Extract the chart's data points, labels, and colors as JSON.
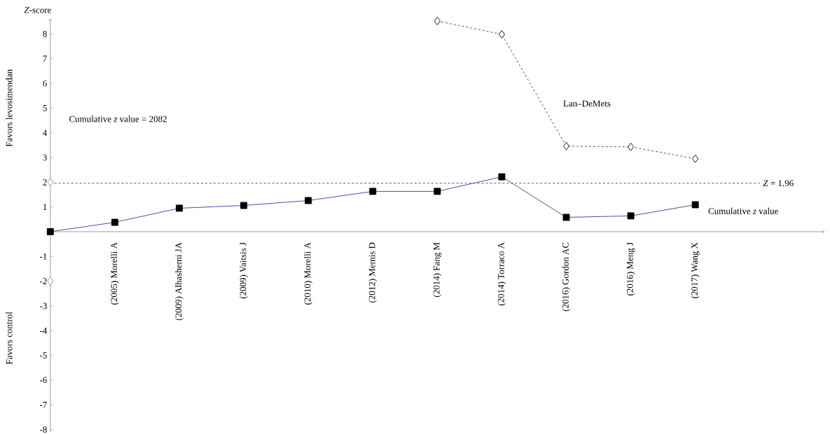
{
  "chart_data": {
    "type": "line",
    "ylabel": "*Z*-score",
    "categories": [
      null,
      "(2005) Morelli A",
      "(2009) Alhashemi JA",
      "(2009) Vaitsis J",
      "(2010) Morelli A",
      "(2012) Memis D",
      "(2014) Fang M",
      "(2014) Torraco A",
      "(2016) Gordon AC",
      "(2016) Meng J",
      "(2017) Wang X"
    ],
    "series": [
      {
        "name": "Cumulative *z* value",
        "color": "#2e3f9e",
        "marker": "square",
        "line_style": "solid",
        "values": [
          0,
          0.38,
          0.95,
          1.06,
          1.26,
          1.63,
          1.63,
          2.22,
          0.58,
          0.64,
          1.09
        ]
      },
      {
        "name": "Lan–DeMets",
        "color": "#9b1b4b",
        "marker": "diamond",
        "line_style": "dashed",
        "values": [
          null,
          null,
          null,
          null,
          null,
          null,
          8.52,
          7.98,
          3.46,
          3.43,
          2.95
        ]
      },
      {
        "type": "scatter",
        "color": "#000000",
        "marker": "diamond",
        "values": [
          2,
          null,
          null,
          null,
          null,
          null,
          null,
          null,
          null,
          null,
          null
        ]
      },
      {
        "type": "scatter",
        "color": "#000000",
        "marker": "diamond",
        "values": [
          -2,
          null,
          null,
          null,
          null,
          null,
          null,
          null,
          null,
          null,
          null
        ]
      }
    ],
    "ref_lines": [
      {
        "axis": "y",
        "value": 1.96,
        "label": "*Z* = 1.96",
        "color": "#9b1b4b",
        "line_style": "dashed"
      }
    ],
    "annotations": [
      "Favors levosimendan",
      "Favors control",
      "Cumulative *z* value = 2082"
    ],
    "ylim": [
      -8.1,
      8.6
    ],
    "yticks": [
      -8,
      -7,
      -6,
      -5,
      -4,
      -3,
      -2,
      -1,
      1,
      2,
      3,
      4,
      5,
      6,
      7,
      8
    ]
  }
}
